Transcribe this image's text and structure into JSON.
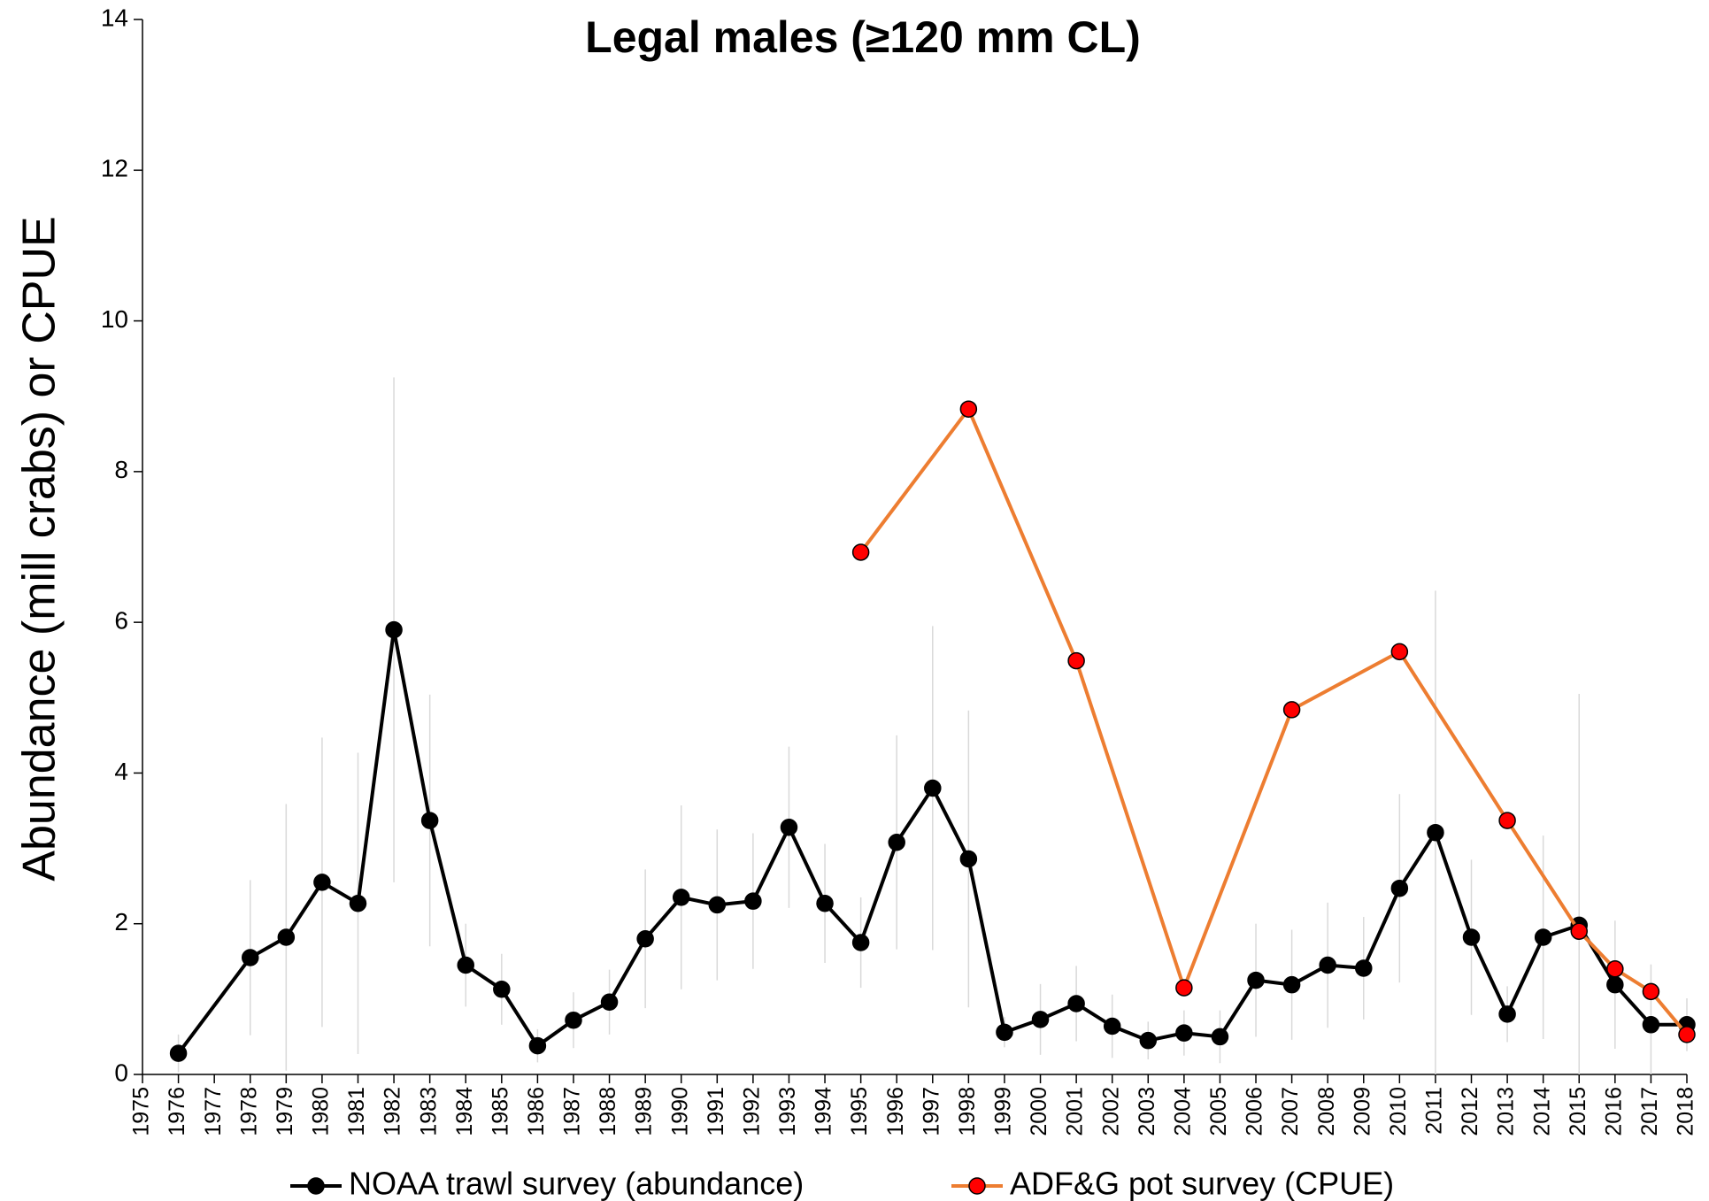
{
  "chart_data": {
    "type": "line",
    "title": "Legal males (≥120 mm CL)",
    "y_label": "Abundance (mill crabs) or CPUE",
    "xlim": [
      1975,
      2018
    ],
    "xticks": [
      1975,
      1976,
      1977,
      1978,
      1979,
      1980,
      1981,
      1982,
      1983,
      1984,
      1985,
      1986,
      1987,
      1988,
      1989,
      1990,
      1991,
      1992,
      1993,
      1994,
      1995,
      1996,
      1997,
      1998,
      1999,
      2000,
      2001,
      2002,
      2003,
      2004,
      2005,
      2006,
      2007,
      2008,
      2009,
      2010,
      2011,
      2012,
      2013,
      2014,
      2015,
      2016,
      2017,
      2018
    ],
    "ylim": [
      0,
      14
    ],
    "yticks": [
      0,
      2,
      4,
      6,
      8,
      10,
      12,
      14
    ],
    "error_color": "#d9d9d9",
    "series": [
      {
        "name": "NOAA trawl survey (abundance)",
        "color": "#000000",
        "marker_color": "#000000",
        "x": [
          1976,
          1978,
          1979,
          1980,
          1981,
          1982,
          1983,
          1984,
          1985,
          1986,
          1987,
          1988,
          1989,
          1990,
          1991,
          1992,
          1993,
          1994,
          1995,
          1996,
          1997,
          1998,
          1999,
          2000,
          2001,
          2002,
          2003,
          2004,
          2005,
          2006,
          2007,
          2008,
          2009,
          2010,
          2011,
          2012,
          2013,
          2014,
          2015,
          2016,
          2017,
          2018
        ],
        "values": [
          0.28,
          1.55,
          1.82,
          2.55,
          2.27,
          5.9,
          3.37,
          1.45,
          1.13,
          0.38,
          0.72,
          0.96,
          1.8,
          2.35,
          2.25,
          2.3,
          3.28,
          2.27,
          1.75,
          3.08,
          3.8,
          2.86,
          0.56,
          0.73,
          0.94,
          0.64,
          0.45,
          0.55,
          0.5,
          1.25,
          1.19,
          1.45,
          1.41,
          2.47,
          3.21,
          1.82,
          0.8,
          1.82,
          1.98,
          1.19,
          0.66,
          0.66
        ],
        "errors": [
          0.25,
          1.03,
          1.77,
          1.92,
          2.0,
          3.35,
          1.67,
          0.55,
          0.47,
          0.22,
          0.37,
          0.43,
          0.92,
          1.22,
          1.0,
          0.9,
          1.07,
          0.79,
          0.6,
          1.42,
          2.15,
          1.97,
          0.2,
          0.47,
          0.5,
          0.42,
          0.25,
          0.3,
          0.35,
          0.75,
          0.73,
          0.83,
          0.68,
          1.25,
          3.21,
          1.03,
          0.37,
          1.35,
          3.07,
          0.85,
          0.8,
          0.35
        ]
      },
      {
        "name": "ADF&G pot survey (CPUE)",
        "color": "#ed7d31",
        "marker_color": "#ff0000",
        "x": [
          1995,
          1998,
          2001,
          2004,
          2007,
          2010,
          2013,
          2015,
          2016,
          2017,
          2018
        ],
        "values": [
          6.93,
          8.83,
          5.49,
          1.15,
          4.84,
          5.61,
          3.37,
          1.9,
          1.4,
          1.1,
          0.53
        ]
      }
    ]
  }
}
